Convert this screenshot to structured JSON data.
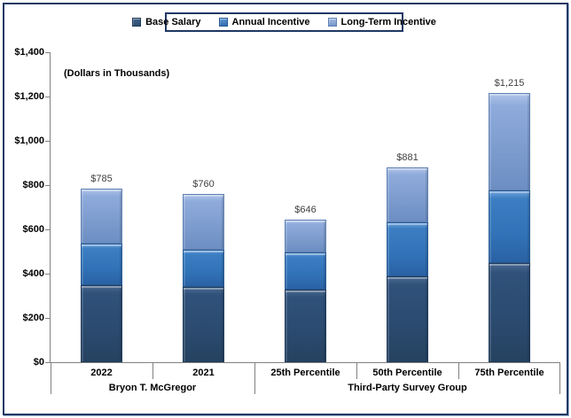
{
  "annotation": "(Dollars in Thousands)",
  "legend": {
    "items": [
      {
        "label": "Base Salary",
        "color": "#2B4B70"
      },
      {
        "label": "Annual Incentive",
        "color": "#3273B8"
      },
      {
        "label": "Long-Term Incentive",
        "color": "#7D9CCE"
      }
    ]
  },
  "chart_data": {
    "type": "bar",
    "stacked": true,
    "title": "",
    "note": "(Dollars in Thousands)",
    "categories": [
      "2022",
      "2021",
      "25th Percentile",
      "50th Percentile",
      "75th Percentile"
    ],
    "category_groups": [
      {
        "label": "Bryon T. McGregor",
        "start": 0,
        "end": 2
      },
      {
        "label": "Third-Party Survey Group",
        "start": 2,
        "end": 5
      }
    ],
    "series": [
      {
        "name": "Base Salary",
        "color": "#2B4B70",
        "values": [
          350,
          340,
          328,
          390,
          450
        ]
      },
      {
        "name": "Annual Incentive",
        "color": "#3273B8",
        "values": [
          185,
          170,
          168,
          243,
          325
        ]
      },
      {
        "name": "Long-Term Incentive",
        "color": "#7D9CCE",
        "values": [
          250,
          250,
          150,
          248,
          440
        ]
      }
    ],
    "totals": [
      785,
      760,
      646,
      881,
      1215
    ],
    "total_labels": [
      "$785",
      "$760",
      "$646",
      "$881",
      "$1,215"
    ],
    "y_ticks": [
      "$0",
      "$200",
      "$400",
      "$600",
      "$800",
      "$1,000",
      "$1,200",
      "$1,400"
    ],
    "y_tick_values": [
      0,
      200,
      400,
      600,
      800,
      1000,
      1200,
      1400
    ],
    "ylim": [
      0,
      1400
    ],
    "grid": false,
    "legend_position": "top-center"
  }
}
